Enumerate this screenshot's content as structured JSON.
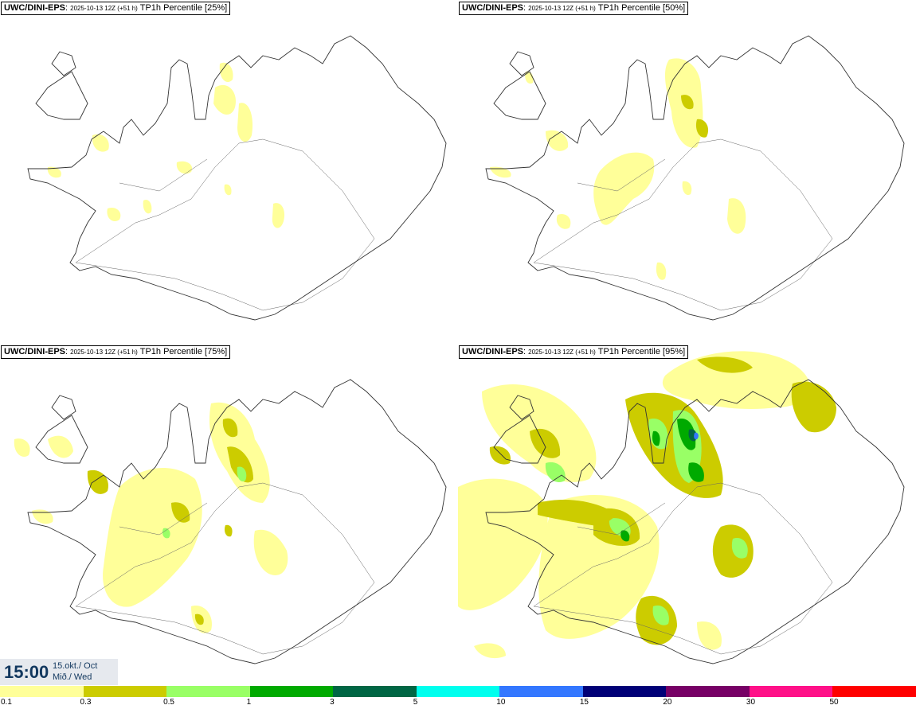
{
  "panels": [
    {
      "model": "UWC/DINI-EPS",
      "run": "2025-10-13 12Z (+51 h)",
      "product": "TP1h Percentile [25%]"
    },
    {
      "model": "UWC/DINI-EPS",
      "run": "2025-10-13 12Z (+51 h)",
      "product": "TP1h Percentile [50%]"
    },
    {
      "model": "UWC/DINI-EPS",
      "run": "2025-10-13 12Z (+51 h)",
      "product": "TP1h Percentile [75%]"
    },
    {
      "model": "UWC/DINI-EPS",
      "run": "2025-10-13 12Z (+51 h)",
      "product": "TP1h Percentile [95%]"
    }
  ],
  "valid": {
    "time": "15:00",
    "date_line1": "15.okt./ Oct",
    "date_line2": "Mið./ Wed"
  },
  "legend": {
    "colors": [
      "#ffff99",
      "#cccc00",
      "#99ff66",
      "#00aa00",
      "#006644",
      "#00ffee",
      "#3377ff",
      "#000077",
      "#770066",
      "#ff1188",
      "#ff0000"
    ],
    "ticks": [
      "0.1",
      "0.3",
      "0.5",
      "1",
      "3",
      "5",
      "10",
      "15",
      "20",
      "30",
      "50"
    ]
  }
}
